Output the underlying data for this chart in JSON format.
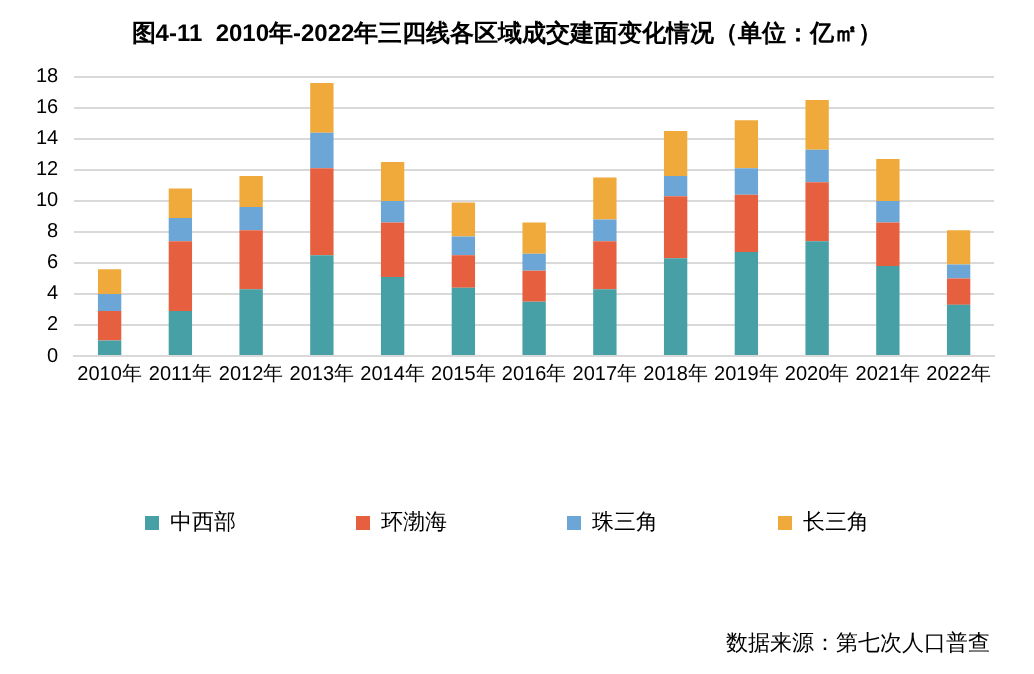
{
  "chart_data": {
    "type": "bar",
    "title": "图4-11  2010年-2022年三四线各区域成交建面变化情况（单位：亿㎡）",
    "categories": [
      "2010年",
      "2011年",
      "2012年",
      "2013年",
      "2014年",
      "2015年",
      "2016年",
      "2017年",
      "2018年",
      "2019年",
      "2020年",
      "2021年",
      "2022年"
    ],
    "series": [
      {
        "name": "中西部",
        "color": "#46a0a5",
        "values": [
          1.0,
          2.9,
          4.3,
          6.5,
          5.1,
          4.4,
          3.5,
          4.3,
          6.3,
          6.7,
          7.4,
          5.8,
          3.3
        ]
      },
      {
        "name": "环渤海",
        "color": "#e6603f",
        "values": [
          1.9,
          4.5,
          3.8,
          5.6,
          3.5,
          2.1,
          2.0,
          3.1,
          4.0,
          3.7,
          3.8,
          2.8,
          1.7
        ]
      },
      {
        "name": "珠三角",
        "color": "#6ca6d7",
        "values": [
          1.1,
          1.5,
          1.5,
          2.3,
          1.4,
          1.2,
          1.1,
          1.4,
          1.3,
          1.7,
          2.1,
          1.4,
          0.9
        ]
      },
      {
        "name": "长三角",
        "color": "#f0aa3c",
        "values": [
          1.6,
          1.9,
          2.0,
          3.2,
          2.5,
          2.2,
          2.0,
          2.7,
          2.9,
          3.1,
          3.2,
          2.7,
          2.2
        ]
      }
    ],
    "stacked": true,
    "ylim": [
      0,
      18
    ],
    "yticks": [
      0,
      2,
      4,
      6,
      8,
      10,
      12,
      14,
      16,
      18
    ],
    "grid": "y",
    "legend": "bottom",
    "annotations": [
      "数据来源：第七次人口普查"
    ]
  }
}
